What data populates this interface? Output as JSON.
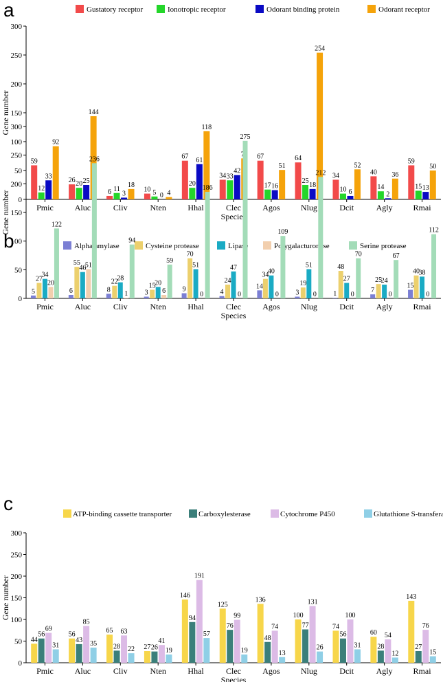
{
  "chart_data": [
    {
      "panel": "a",
      "type": "bar",
      "categories": [
        "Pmic",
        "Aluc",
        "Cliv",
        "Nten",
        "Hhal",
        "Clec",
        "Agos",
        "Nlug",
        "Dcit",
        "Agly",
        "Rmai"
      ],
      "series": [
        {
          "name": "Gustatory receptor",
          "color": "#f24a4a",
          "values": [
            59,
            26,
            6,
            10,
            67,
            34,
            67,
            64,
            34,
            40,
            59
          ]
        },
        {
          "name": "Ionotropic receptor",
          "color": "#24d62a",
          "values": [
            12,
            20,
            11,
            5,
            20,
            33,
            17,
            25,
            10,
            14,
            15
          ]
        },
        {
          "name": "Odorant binding protein",
          "color": "#0a0ac4",
          "values": [
            33,
            25,
            3,
            0,
            61,
            42,
            16,
            18,
            6,
            2,
            13
          ]
        },
        {
          "name": "Odorant receptor",
          "color": "#f5a30a",
          "values": [
            92,
            144,
            18,
            4,
            118,
            71,
            51,
            254,
            52,
            36,
            50
          ]
        }
      ],
      "xlabel": "Species",
      "ylabel": "Gene number",
      "ylim": [
        0,
        300
      ],
      "yticks": [
        0,
        50,
        100,
        150,
        200,
        250,
        300
      ],
      "legend": "top"
    },
    {
      "panel": "b",
      "type": "bar",
      "categories": [
        "Pmic",
        "Aluc",
        "Cliv",
        "Nten",
        "Hhal",
        "Clec",
        "Agos",
        "Nlug",
        "Dcit",
        "Agly",
        "Rmai"
      ],
      "series": [
        {
          "name": "Alpha amylase",
          "color": "#7b7fd4",
          "values": [
            5,
            6,
            8,
            3,
            9,
            4,
            14,
            3,
            1,
            7,
            15
          ]
        },
        {
          "name": "Cysteine protease",
          "color": "#ecd06d",
          "values": [
            27,
            55,
            22,
            15,
            70,
            24,
            34,
            19,
            48,
            25,
            40
          ]
        },
        {
          "name": "Lipase",
          "color": "#1aabc4",
          "values": [
            34,
            46,
            28,
            20,
            51,
            47,
            40,
            51,
            27,
            24,
            38
          ]
        },
        {
          "name": "Polygalacturonase",
          "color": "#f2cfae",
          "values": [
            20,
            51,
            1,
            6,
            0,
            0,
            0,
            0,
            0,
            0,
            0
          ]
        },
        {
          "name": "Serine protease",
          "color": "#a3dcb8",
          "values": [
            122,
            236,
            94,
            59,
            186,
            275,
            109,
            212,
            70,
            67,
            112
          ]
        }
      ],
      "xlabel": "Species",
      "ylabel": "Gene number",
      "ylim": [
        0,
        300
      ],
      "yticks": [
        0,
        50,
        100,
        150,
        200,
        250,
        300
      ],
      "legend": "top"
    },
    {
      "panel": "c",
      "type": "bar",
      "categories": [
        "Pmic",
        "Aluc",
        "Cliv",
        "Nten",
        "Hhal",
        "Clec",
        "Agos",
        "Nlug",
        "Dcit",
        "Agly",
        "Rmai"
      ],
      "series": [
        {
          "name": "ATP-binding cassette transporter",
          "color": "#f7d64a",
          "values": [
            44,
            56,
            65,
            27,
            146,
            125,
            136,
            100,
            74,
            60,
            143
          ]
        },
        {
          "name": "Carboxylesterase",
          "color": "#3b7f7a",
          "values": [
            56,
            43,
            28,
            26,
            94,
            76,
            48,
            77,
            56,
            28,
            27
          ]
        },
        {
          "name": "Cytochrome P450",
          "color": "#dcbbe6",
          "values": [
            69,
            85,
            63,
            41,
            191,
            99,
            74,
            131,
            100,
            54,
            76
          ]
        },
        {
          "name": "Glutathione S-transferase",
          "color": "#8fcfe6",
          "values": [
            31,
            35,
            22,
            19,
            57,
            19,
            13,
            26,
            31,
            12,
            15
          ]
        }
      ],
      "xlabel": "Species",
      "ylabel": "Gene number",
      "ylim": [
        0,
        300
      ],
      "yticks": [
        0,
        50,
        100,
        150,
        200,
        250,
        300
      ],
      "legend": "top"
    }
  ]
}
